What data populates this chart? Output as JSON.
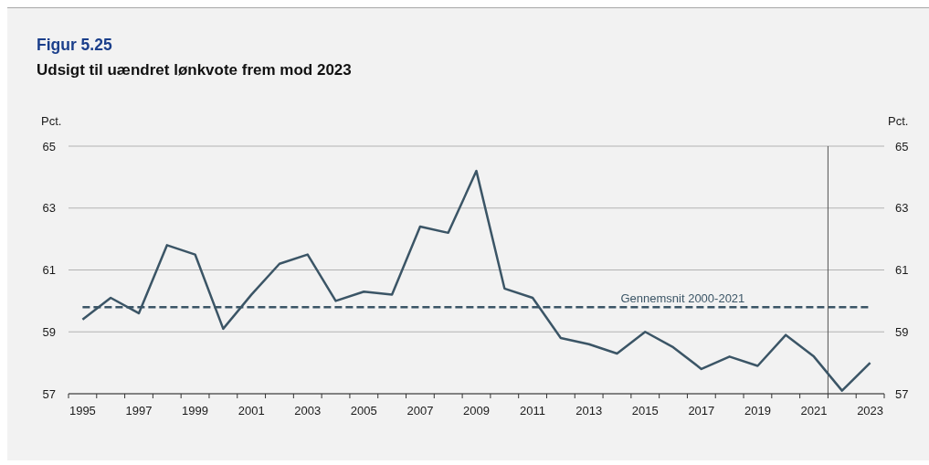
{
  "chart_data": {
    "type": "line",
    "title": "Figur 5.25",
    "subtitle": "Udsigt til uændret lønkvote frem mod 2023",
    "ylabel": "Pct.",
    "y2label": "Pct.",
    "x": [
      1995,
      1996,
      1997,
      1998,
      1999,
      2000,
      2001,
      2002,
      2003,
      2004,
      2005,
      2006,
      2007,
      2008,
      2009,
      2010,
      2011,
      2012,
      2013,
      2014,
      2015,
      2016,
      2017,
      2018,
      2019,
      2020,
      2021,
      2022,
      2023
    ],
    "series": [
      {
        "color": "#3b5566",
        "values": [
          59.4,
          60.1,
          59.6,
          61.8,
          61.5,
          59.1,
          60.2,
          61.2,
          61.5,
          60.0,
          60.3,
          60.2,
          62.4,
          62.2,
          64.2,
          60.4,
          60.1,
          58.8,
          58.6,
          58.3,
          59.0,
          58.5,
          57.8,
          58.2,
          57.9,
          58.9,
          58.2,
          57.1,
          58.0
        ]
      }
    ],
    "xlim": [
      1994.5,
      2023.5
    ],
    "xticks": [
      {
        "value": 1994.5,
        "label": null
      },
      1995,
      {
        "value": 1995.5,
        "label": null
      },
      {
        "value": 1996.5,
        "label": null
      },
      1997,
      {
        "value": 1997.5,
        "label": null
      },
      {
        "value": 1998.5,
        "label": null
      },
      1999,
      {
        "value": 1999.5,
        "label": null
      },
      {
        "value": 2000.5,
        "label": null
      },
      2001,
      {
        "value": 2001.5,
        "label": null
      },
      {
        "value": 2002.5,
        "label": null
      },
      2003,
      {
        "value": 2003.5,
        "label": null
      },
      {
        "value": 2004.5,
        "label": null
      },
      2005,
      {
        "value": 2005.5,
        "label": null
      },
      {
        "value": 2006.5,
        "label": null
      },
      2007,
      {
        "value": 2007.5,
        "label": null
      },
      {
        "value": 2008.5,
        "label": null
      },
      2009,
      {
        "value": 2009.5,
        "label": null
      },
      {
        "value": 2010.5,
        "label": null
      },
      2011,
      {
        "value": 2011.5,
        "label": null
      },
      {
        "value": 2012.5,
        "label": null
      },
      2013,
      {
        "value": 2013.5,
        "label": null
      },
      {
        "value": 2014.5,
        "label": null
      },
      2015,
      {
        "value": 2015.5,
        "label": null
      },
      {
        "value": 2016.5,
        "label": null
      },
      2017,
      {
        "value": 2017.5,
        "label": null
      },
      {
        "value": 2018.5,
        "label": null
      },
      2019,
      {
        "value": 2019.5,
        "label": null
      },
      {
        "value": 2020.5,
        "label": null
      },
      2021,
      {
        "value": 2021.5,
        "label": null
      },
      {
        "value": 2022.5,
        "label": null
      },
      2023,
      {
        "value": 2023.5,
        "label": null
      }
    ],
    "ylim": [
      57,
      65
    ],
    "yticks": [
      57,
      59,
      61,
      63,
      65
    ],
    "y2lim": [
      57,
      65
    ],
    "y2ticks": [
      57,
      59,
      61,
      63,
      65
    ],
    "grid": "y",
    "ref_lines": [
      {
        "axis": "y",
        "value": 59.8,
        "label": "Gennemsnit 2000-2021",
        "line_style": "dashed",
        "color": "#3b5566"
      },
      {
        "axis": "x",
        "value": 2021.5,
        "color": "#555555"
      }
    ]
  }
}
